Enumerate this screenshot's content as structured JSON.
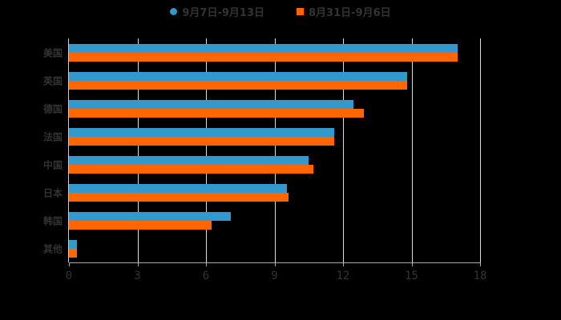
{
  "chart_data": {
    "type": "bar",
    "orientation": "horizontal",
    "title": "",
    "xlabel": "",
    "ylabel": "",
    "xlim": [
      0,
      18
    ],
    "x_ticks": [
      "0",
      "3",
      "6",
      "9",
      "12",
      "15",
      "18"
    ],
    "grid": true,
    "legend_position": "top",
    "categories": [
      "美国",
      "英国",
      "德国",
      "法国",
      "中国",
      "日本",
      "韩国",
      "其他"
    ],
    "series": [
      {
        "name": "9月7日-9月13日",
        "color": "#3399cc",
        "marker": "circle",
        "values": [
          17.0,
          14.8,
          12.45,
          11.6,
          10.5,
          9.55,
          7.1,
          0.35
        ]
      },
      {
        "name": "8月31日-9月6日",
        "color": "#ff6600",
        "marker": "square",
        "values": [
          17.0,
          14.8,
          12.9,
          11.6,
          10.7,
          9.6,
          6.25,
          0.35
        ]
      }
    ]
  }
}
